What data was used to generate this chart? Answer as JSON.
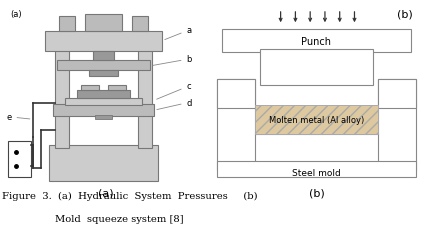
{
  "fig_width": 4.22,
  "fig_height": 2.26,
  "dpi": 100,
  "caption_line1": "Figure  3.  (a)  Hydraulic  System  Pressures     (b)",
  "caption_line2": "Mold  squeeze system [8]",
  "punch_label": "Punch",
  "metal_label": "Molten metal (Al alloy)",
  "steel_label": "Steel mold",
  "edge_color": "#777777",
  "metal_fill": "#ddc8a0",
  "light_gray": "#cccccc",
  "dark_gray": "#999999",
  "mid_gray": "#bbbbbb",
  "line_color": "#444444",
  "arrow_color": "#333333"
}
